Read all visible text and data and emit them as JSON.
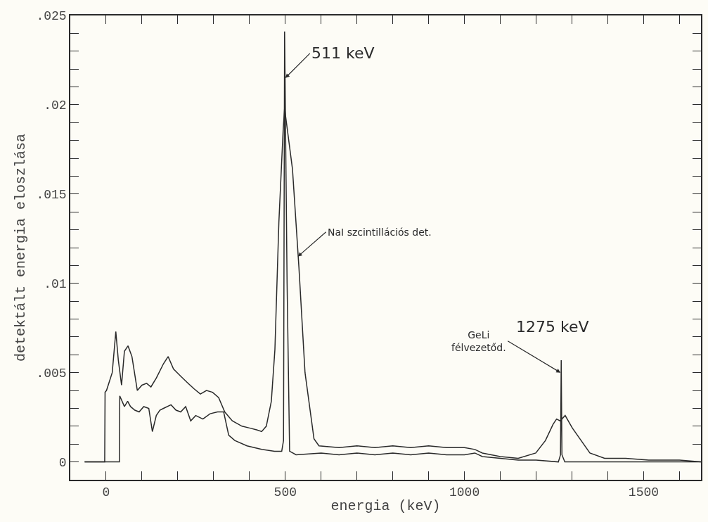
{
  "chart_data": {
    "type": "line",
    "xlabel": "energia (keV)",
    "ylabel": "detektált energia eloszlása",
    "xlim": [
      -100,
      1660
    ],
    "ylim": [
      -0.001,
      0.025
    ],
    "xticks": [
      {
        "value": -100,
        "label": null
      },
      0,
      {
        "value": 100,
        "label": null
      },
      {
        "value": 200,
        "label": null
      },
      {
        "value": 300,
        "label": null
      },
      {
        "value": 400,
        "label": null
      },
      500,
      {
        "value": 600,
        "label": null
      },
      {
        "value": 700,
        "label": null
      },
      {
        "value": 800,
        "label": null
      },
      {
        "value": 900,
        "label": null
      },
      1000,
      {
        "value": 1100,
        "label": null
      },
      {
        "value": 1200,
        "label": null
      },
      {
        "value": 1300,
        "label": null
      },
      {
        "value": 1400,
        "label": null
      },
      1500,
      {
        "value": 1600,
        "label": null
      }
    ],
    "yticks": [
      0,
      {
        "value": 0.001,
        "label": null
      },
      {
        "value": 0.002,
        "label": null
      },
      {
        "value": 0.003,
        "label": null
      },
      {
        "value": 0.004,
        "label": null
      },
      {
        "value": 0.005,
        "label": ".005"
      },
      {
        "value": 0.006,
        "label": null
      },
      {
        "value": 0.007,
        "label": null
      },
      {
        "value": 0.008,
        "label": null
      },
      {
        "value": 0.009,
        "label": null
      },
      {
        "value": 0.01,
        "label": ".01"
      },
      {
        "value": 0.011,
        "label": null
      },
      {
        "value": 0.012,
        "label": null
      },
      {
        "value": 0.013,
        "label": null
      },
      {
        "value": 0.014,
        "label": null
      },
      {
        "value": 0.015,
        "label": ".015"
      },
      {
        "value": 0.016,
        "label": null
      },
      {
        "value": 0.017,
        "label": null
      },
      {
        "value": 0.018,
        "label": null
      },
      {
        "value": 0.019,
        "label": null
      },
      {
        "value": 0.02,
        "label": ".02"
      },
      {
        "value": 0.021,
        "label": null
      },
      {
        "value": 0.022,
        "label": null
      },
      {
        "value": 0.023,
        "label": null
      },
      {
        "value": 0.024,
        "label": null
      },
      {
        "value": 0.025,
        "label": ".025"
      }
    ],
    "grid": false,
    "marker": "none",
    "line_style": "solid",
    "series": [
      {
        "color": "#2a2a2a",
        "x": [
          -60,
          -4,
          -3,
          1,
          17,
          27,
          34,
          43,
          51,
          61,
          72,
          87,
          100,
          113,
          125,
          140,
          160,
          173,
          188,
          208,
          229,
          245,
          263,
          280,
          297,
          314,
          331,
          352,
          379,
          400,
          420,
          434,
          447,
          461,
          471,
          482,
          494,
          498,
          520,
          538,
          555,
          580,
          594,
          650,
          700,
          750,
          800,
          850,
          900,
          950,
          1000,
          1029,
          1050,
          1100,
          1150,
          1199,
          1226,
          1247,
          1257,
          1267,
          1281,
          1301,
          1322,
          1350,
          1391,
          1450,
          1514,
          1600,
          1660
        ],
        "values": [
          0,
          0,
          0.0039,
          0.004,
          0.005,
          0.0073,
          0.0057,
          0.0043,
          0.0062,
          0.0065,
          0.0059,
          0.004,
          0.0043,
          0.0044,
          0.0042,
          0.0047,
          0.0055,
          0.0059,
          0.0052,
          0.0048,
          0.0044,
          0.0041,
          0.0038,
          0.004,
          0.0039,
          0.0036,
          0.0028,
          0.0023,
          0.002,
          0.0019,
          0.0018,
          0.0017,
          0.002,
          0.0034,
          0.0063,
          0.0134,
          0.0186,
          0.0198,
          0.0164,
          0.0109,
          0.005,
          0.0013,
          0.0009,
          0.0008,
          0.0009,
          0.0008,
          0.0009,
          0.0008,
          0.0009,
          0.0008,
          0.0008,
          0.0007,
          0.0005,
          0.0003,
          0.0002,
          0.0005,
          0.0012,
          0.0021,
          0.0024,
          0.0023,
          0.0026,
          0.0019,
          0.0013,
          0.0005,
          0.0002,
          0.0002,
          0.0001,
          0.0001,
          0
        ]
      },
      {
        "color": "#2a2a2a",
        "x": [
          -60,
          37,
          38,
          51,
          60,
          68,
          80,
          92,
          105,
          119,
          129,
          140,
          150,
          160,
          181,
          195,
          208,
          222,
          236,
          250,
          270,
          290,
          311,
          328,
          342,
          359,
          393,
          434,
          470,
          490,
          495,
          498,
          505,
          512,
          530,
          600,
          650,
          700,
          750,
          800,
          850,
          900,
          950,
          1000,
          1029,
          1050,
          1100,
          1150,
          1200,
          1262,
          1268,
          1270,
          1272,
          1280,
          1400,
          1500,
          1660
        ],
        "values": [
          0,
          0,
          0.0037,
          0.0031,
          0.0034,
          0.0031,
          0.0029,
          0.0028,
          0.0031,
          0.003,
          0.0017,
          0.0026,
          0.0029,
          0.003,
          0.0032,
          0.0029,
          0.0028,
          0.0031,
          0.0023,
          0.0026,
          0.0024,
          0.0027,
          0.0028,
          0.0028,
          0.0015,
          0.0012,
          0.0009,
          0.0007,
          0.0006,
          0.0006,
          0.0012,
          0.0241,
          0.01,
          0.0006,
          0.0004,
          0.0005,
          0.0004,
          0.0005,
          0.0004,
          0.0005,
          0.0004,
          0.0005,
          0.0004,
          0.0004,
          0.0005,
          0.0003,
          0.0002,
          0.0001,
          0.0001,
          0,
          0.0004,
          0.0057,
          0.0004,
          0,
          0,
          0,
          0
        ]
      }
    ],
    "annotations": [
      {
        "text": "511 keV",
        "x": 500,
        "y": 0.0215
      },
      {
        "text": "NaI szcintillációs det.",
        "x": 535,
        "y": 0.0115
      },
      "1275 keV",
      {
        "text": "GeLi\nfélvezetőd.",
        "x": 1268,
        "y": 0.005
      }
    ]
  }
}
